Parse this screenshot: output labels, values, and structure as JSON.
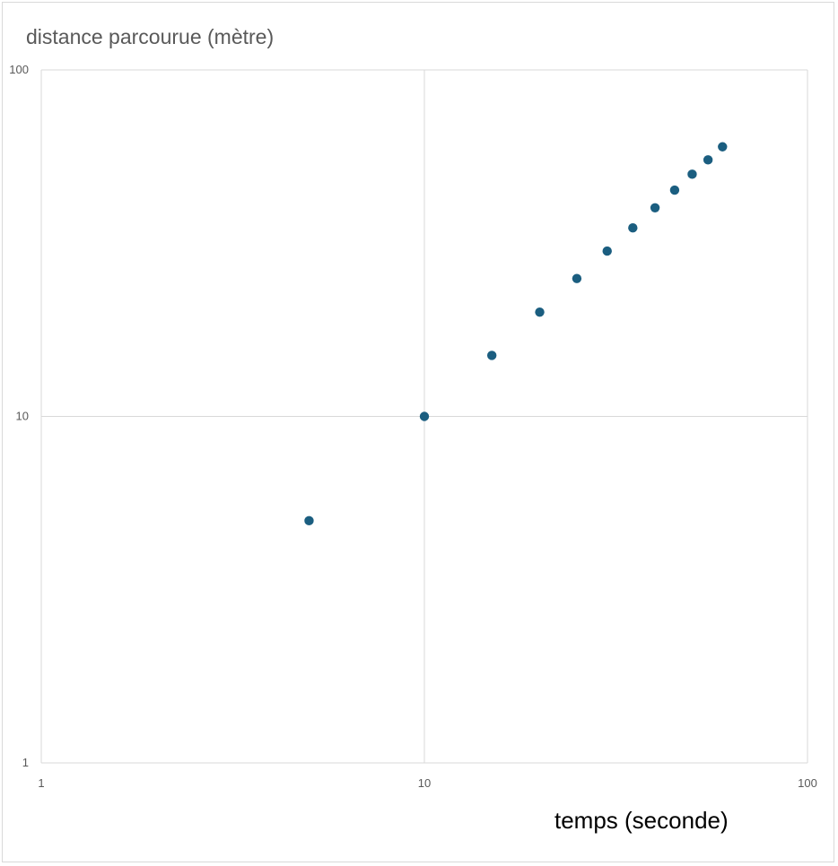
{
  "chart_data": {
    "type": "scatter",
    "ylabel": "distance parcourue (mètre)",
    "xlabel": "temps (seconde)",
    "x_scale": "log",
    "y_scale": "log",
    "xlim": [
      1,
      100
    ],
    "ylim": [
      1,
      100
    ],
    "x_ticks": [
      "1",
      "10",
      "100"
    ],
    "y_ticks": [
      "1",
      "10",
      "100"
    ],
    "grid": true,
    "legend": "none",
    "marker_color": "#1b5e80",
    "points": [
      {
        "x": 5,
        "y": 5
      },
      {
        "x": 10,
        "y": 10
      },
      {
        "x": 15,
        "y": 15
      },
      {
        "x": 20,
        "y": 20
      },
      {
        "x": 25,
        "y": 25
      },
      {
        "x": 30,
        "y": 30
      },
      {
        "x": 35,
        "y": 35
      },
      {
        "x": 40,
        "y": 40
      },
      {
        "x": 45,
        "y": 45
      },
      {
        "x": 50,
        "y": 50
      },
      {
        "x": 55,
        "y": 55
      },
      {
        "x": 60,
        "y": 60
      }
    ]
  }
}
